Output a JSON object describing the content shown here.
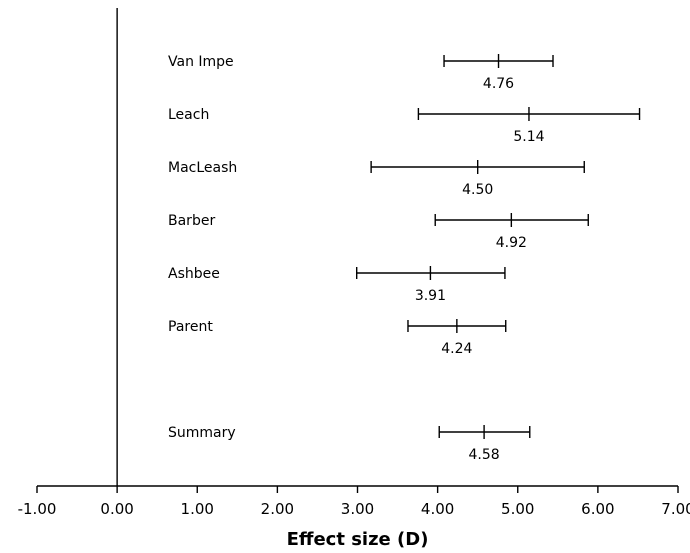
{
  "chart_data": {
    "type": "forest",
    "xlabel": "Effect size (D)",
    "xlim": [
      -1,
      7
    ],
    "x_ticks": [
      "-1.00",
      "0.00",
      "1.00",
      "2.00",
      "3.00",
      "4.00",
      "5.00",
      "6.00",
      "7.00"
    ],
    "x_tick_values": [
      -1,
      0,
      1,
      2,
      3,
      4,
      5,
      6,
      7
    ],
    "reference_line_x": 0,
    "studies": [
      {
        "name": "Van Impe",
        "estimate": 4.76,
        "label": "4.76",
        "lower": 4.08,
        "upper": 5.44
      },
      {
        "name": "Leach",
        "estimate": 5.14,
        "label": "5.14",
        "lower": 3.76,
        "upper": 6.52
      },
      {
        "name": "MacLeash",
        "estimate": 4.5,
        "label": "4.50",
        "lower": 3.17,
        "upper": 5.83
      },
      {
        "name": "Barber",
        "estimate": 4.92,
        "label": "4.92",
        "lower": 3.97,
        "upper": 5.88
      },
      {
        "name": "Ashbee",
        "estimate": 3.91,
        "label": "3.91",
        "lower": 2.99,
        "upper": 4.84
      },
      {
        "name": "Parent",
        "estimate": 4.24,
        "label": "4.24",
        "lower": 3.63,
        "upper": 4.85
      }
    ],
    "summary": {
      "name": "Summary",
      "estimate": 4.58,
      "label": "4.58",
      "lower": 4.02,
      "upper": 5.15
    }
  }
}
